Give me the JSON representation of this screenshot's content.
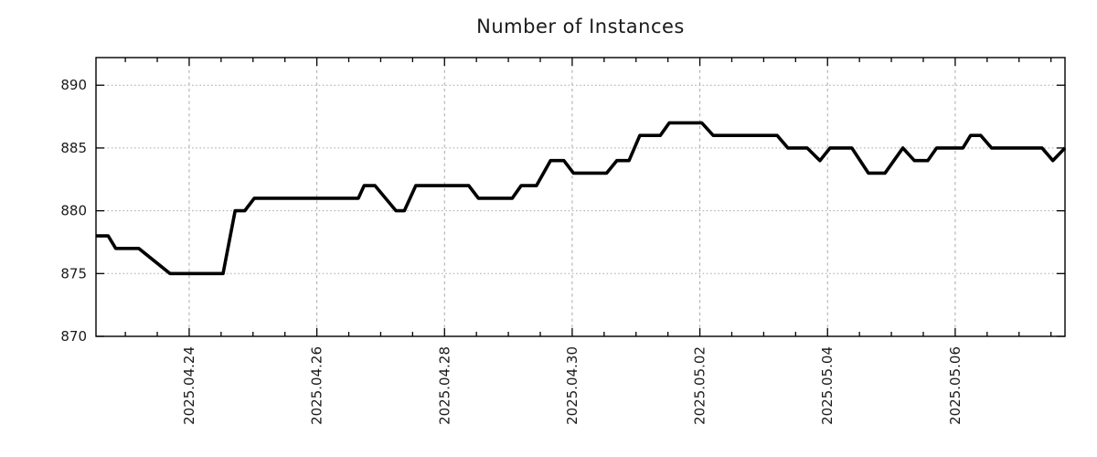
{
  "chart_data": {
    "type": "line",
    "title": "Number of Instances",
    "xlabel": "",
    "ylabel": "",
    "x_unit": "days since 2025-04-24 00:00 (fractional values = intra-day samples)",
    "xlim": [
      -1.46,
      13.72
    ],
    "ylim": [
      870,
      892.2
    ],
    "y_ticks": [
      870,
      875,
      880,
      885,
      890
    ],
    "x_ticks": [
      {
        "t": 0,
        "label": "2025.04.24"
      },
      {
        "t": 2,
        "label": "2025.04.26"
      },
      {
        "t": 4,
        "label": "2025.04.28"
      },
      {
        "t": 6,
        "label": "2025.04.30"
      },
      {
        "t": 8,
        "label": "2025.05.02"
      },
      {
        "t": 10,
        "label": "2025.05.04"
      },
      {
        "t": 12,
        "label": "2025.05.06"
      }
    ],
    "x_minor_tick_step": 0.5,
    "grid": true,
    "legend": "none",
    "line_color": "#000000",
    "grid_color": "#a8a8a8",
    "axis_color": "#000000",
    "text_color": "#1a1a1a",
    "points": [
      [
        -1.46,
        878
      ],
      [
        -1.27,
        878
      ],
      [
        -1.15,
        877
      ],
      [
        -0.79,
        877
      ],
      [
        -0.3,
        875
      ],
      [
        0.53,
        875
      ],
      [
        0.72,
        880
      ],
      [
        0.87,
        880
      ],
      [
        1.02,
        881
      ],
      [
        2.65,
        881
      ],
      [
        2.74,
        882
      ],
      [
        2.91,
        882
      ],
      [
        3.24,
        880
      ],
      [
        3.37,
        880
      ],
      [
        3.55,
        882
      ],
      [
        4.38,
        882
      ],
      [
        4.53,
        881
      ],
      [
        5.06,
        881
      ],
      [
        5.2,
        882
      ],
      [
        5.44,
        882
      ],
      [
        5.66,
        884
      ],
      [
        5.87,
        884
      ],
      [
        6.02,
        883
      ],
      [
        6.54,
        883
      ],
      [
        6.7,
        884
      ],
      [
        6.89,
        884
      ],
      [
        7.06,
        886
      ],
      [
        7.38,
        886
      ],
      [
        7.52,
        887
      ],
      [
        8.03,
        887
      ],
      [
        8.21,
        886
      ],
      [
        9.21,
        886
      ],
      [
        9.38,
        885
      ],
      [
        9.68,
        885
      ],
      [
        9.88,
        884
      ],
      [
        10.04,
        885
      ],
      [
        10.38,
        885
      ],
      [
        10.64,
        883
      ],
      [
        10.9,
        883
      ],
      [
        11.18,
        885
      ],
      [
        11.36,
        884
      ],
      [
        11.57,
        884
      ],
      [
        11.71,
        885
      ],
      [
        12.12,
        885
      ],
      [
        12.24,
        886
      ],
      [
        12.4,
        886
      ],
      [
        12.57,
        885
      ],
      [
        13.36,
        885
      ],
      [
        13.53,
        884
      ],
      [
        13.72,
        885
      ]
    ]
  }
}
